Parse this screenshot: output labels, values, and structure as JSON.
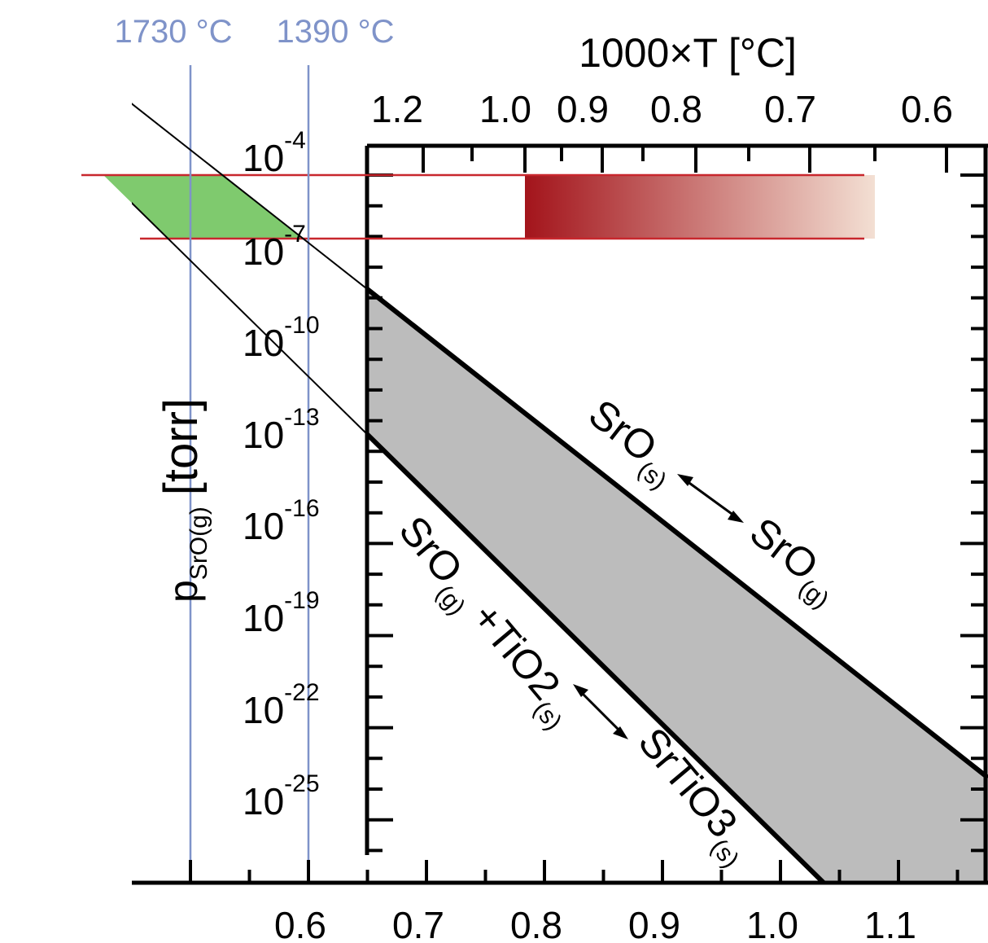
{
  "chart_data": {
    "type": "area",
    "bottom_axis": {
      "label": "",
      "ticks": [
        "0.6",
        "0.7",
        "0.8",
        "0.9",
        "1.0",
        "1.1"
      ],
      "range": [
        0.5,
        1.18
      ]
    },
    "top_axis": {
      "label": "1000×T [°C]",
      "ticks": [
        "1.2",
        "1.0",
        "0.9",
        "0.8",
        "0.7",
        "0.6"
      ]
    },
    "left_axis": {
      "label_main": "p",
      "label_sub": "SrO(g)",
      "label_unit": "[torr]",
      "tick_base": "10",
      "tick_exponents": [
        "-4",
        "-7",
        "-10",
        "-13",
        "-16",
        "-19",
        "-22",
        "-25"
      ],
      "range_log10": [
        -28.9,
        -2
      ]
    },
    "series": [
      {
        "name": "SrO(s) ↔ SrO(g)",
        "x": [
          0.46,
          1.18
        ],
        "log10_p": [
          -2.0,
          -28.4
        ]
      },
      {
        "name": "SrO(g) + TiO2(s) ↔ SrTiO3(s)",
        "x": [
          0.46,
          1.04
        ],
        "log10_p": [
          -5.4,
          -28.9
        ]
      }
    ],
    "shaded_region": {
      "color": "#bcbcbc",
      "between": [
        "SrO(s) ↔ SrO(g)",
        "SrO(g) + TiO2(s) ↔ SrTiO3(s)"
      ],
      "x_start": 0.65
    },
    "green_region": {
      "color": "#7fca6e",
      "log10_p_range": [
        -4.9,
        -7.0
      ]
    },
    "pressure_window": {
      "line_color": "#c8272d",
      "log10_p": [
        -4.9,
        -7.0
      ],
      "gradient_from": "#a3141b",
      "gradient_to": "#f3dfd3"
    },
    "reference_lines": [
      {
        "label": "1730 °C",
        "x": 0.5,
        "color": "#7f93c9"
      },
      {
        "label": "1390 °C",
        "x": 0.6,
        "color": "#7f93c9"
      }
    ],
    "annotations": {
      "upper_left": "SrO",
      "upper_left_sub": "(s)",
      "upper_right": "SrO",
      "upper_right_sub": "(g)",
      "lower_a": "SrO",
      "lower_a_sub": "(g)",
      "lower_b": " +TiO",
      "lower_b_num": "2",
      "lower_b_sub": "(s)",
      "lower_c": "SrTiO",
      "lower_c_num": "3",
      "lower_c_sub": "(s)"
    }
  }
}
